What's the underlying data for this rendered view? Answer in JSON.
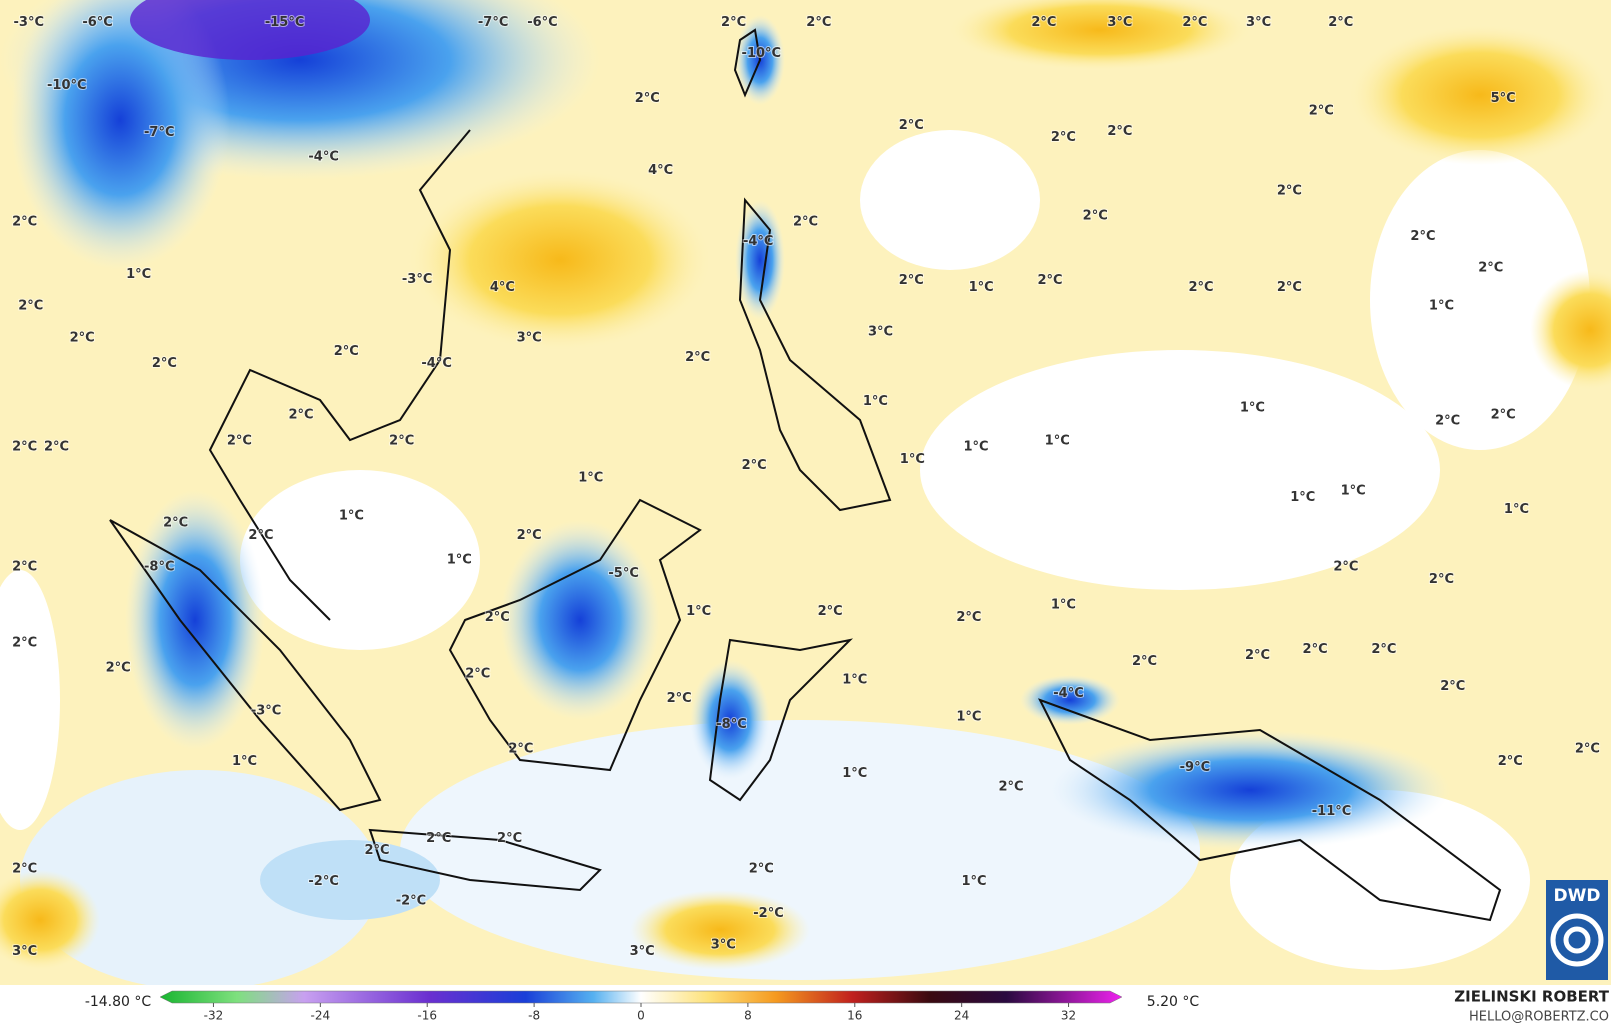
{
  "labels": [
    "-3°C",
    "-6°C",
    "-15°C",
    "-7°C",
    "-6°C",
    "2°C",
    "2°C",
    "2°C",
    "3°C",
    "2°C",
    "3°C",
    "2°C",
    "-10°C",
    "-10°C",
    "2°C",
    "5°C",
    "2°C",
    "-7°C",
    "2°C",
    "2°C",
    "2°C",
    "-4°C",
    "4°C",
    "2°C",
    "2°C",
    "2°C",
    "2°C",
    "-4°C",
    "2°C",
    "2°C",
    "1°C",
    "4°C",
    "-3°C",
    "2°C",
    "1°C",
    "2°C",
    "2°C",
    "2°C",
    "2°C",
    "1°C",
    "2°C",
    "3°C",
    "3°C",
    "2°C",
    "2°C",
    "2°C",
    "-4°C",
    "1°C",
    "1°C",
    "2°C",
    "2°C",
    "2°C",
    "2°C",
    "2°C",
    "2°C",
    "2°C",
    "1°C",
    "1°C",
    "2°C",
    "1°C",
    "1°C",
    "1°C",
    "1°C",
    "1°C",
    "1°C",
    "2°C",
    "2°C",
    "2°C",
    "-8°C",
    "1°C",
    "-5°C",
    "2°C",
    "2°C",
    "2°C",
    "1°C",
    "1°C",
    "2°C",
    "2°C",
    "2°C",
    "2°C",
    "2°C",
    "2°C",
    "2°C",
    "2°C",
    "2°C",
    "2°C",
    "1°C",
    "2°C",
    "-4°C",
    "2°C",
    "1°C",
    "-3°C",
    "-8°C",
    "2°C",
    "1°C",
    "2°C",
    "2°C",
    "-9°C",
    "1°C",
    "2°C",
    "-11°C",
    "2°C",
    "2°C",
    "2°C",
    "2°C",
    "2°C",
    "-2°C",
    "1°C",
    "-2°C",
    "-2°C",
    "3°C",
    "3°C",
    "3°C"
  ],
  "colorbar": {
    "min_label": "-14.80 °C",
    "max_label": "5.20 °C",
    "lim": [
      -36,
      36
    ],
    "ticks": [
      -32,
      -24,
      -16,
      -8,
      0,
      8,
      16,
      24,
      32
    ]
  },
  "credit": {
    "name": "ZIELINSKI ROBERT",
    "contact": "HELLO@ROBERTZ.CO",
    "logo": "DWD"
  }
}
